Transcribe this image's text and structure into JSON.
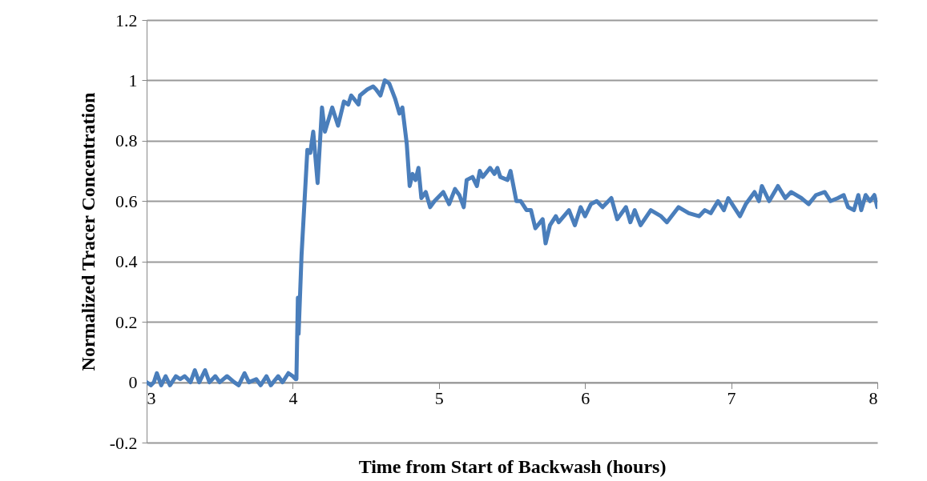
{
  "chart_data": {
    "type": "line",
    "xlabel": "Time from Start of Backwash (hours)",
    "ylabel": "Normalized Tracer Concentration",
    "xlim": [
      3,
      8
    ],
    "xticks": [
      3,
      4,
      5,
      6,
      7,
      8
    ],
    "ylim": [
      -0.2,
      1.2
    ],
    "yticks": [
      -0.2,
      0,
      0.2,
      0.4,
      0.6,
      0.8,
      1,
      1.2
    ],
    "grid": "y",
    "line_style": "solid",
    "marker": "none",
    "series": [
      {
        "color": "#4a7ebb",
        "x": [
          3.0,
          3.03,
          3.05,
          3.07,
          3.1,
          3.13,
          3.16,
          3.2,
          3.23,
          3.26,
          3.3,
          3.33,
          3.36,
          3.4,
          3.43,
          3.47,
          3.5,
          3.55,
          3.6,
          3.63,
          3.67,
          3.7,
          3.75,
          3.78,
          3.82,
          3.85,
          3.9,
          3.93,
          3.97,
          4.0,
          4.02,
          4.025,
          4.035,
          4.04,
          4.06,
          4.1,
          4.12,
          4.14,
          4.17,
          4.2,
          4.22,
          4.27,
          4.31,
          4.35,
          4.38,
          4.4,
          4.45,
          4.46,
          4.51,
          4.55,
          4.57,
          4.6,
          4.63,
          4.66,
          4.7,
          4.73,
          4.75,
          4.78,
          4.8,
          4.82,
          4.84,
          4.86,
          4.88,
          4.91,
          4.94,
          4.97,
          5.03,
          5.07,
          5.11,
          5.14,
          5.17,
          5.19,
          5.23,
          5.26,
          5.28,
          5.3,
          5.35,
          5.38,
          5.4,
          5.42,
          5.47,
          5.49,
          5.53,
          5.56,
          5.6,
          5.63,
          5.66,
          5.71,
          5.73,
          5.76,
          5.8,
          5.82,
          5.89,
          5.93,
          5.97,
          6.0,
          6.04,
          6.08,
          6.12,
          6.18,
          6.22,
          6.28,
          6.31,
          6.34,
          6.38,
          6.45,
          6.52,
          6.56,
          6.64,
          6.71,
          6.78,
          6.82,
          6.86,
          6.91,
          6.95,
          6.98,
          7.02,
          7.06,
          7.1,
          7.16,
          7.19,
          7.21,
          7.26,
          7.32,
          7.37,
          7.41,
          7.48,
          7.53,
          7.58,
          7.64,
          7.68,
          7.73,
          7.77,
          7.8,
          7.84,
          7.87,
          7.89,
          7.92,
          7.95,
          7.98,
          8.0
        ],
        "values": [
          0,
          -0.01,
          0,
          0.03,
          -0.01,
          0.02,
          -0.01,
          0.02,
          0.01,
          0.02,
          0,
          0.04,
          0,
          0.04,
          0,
          0.02,
          0,
          0.02,
          0,
          -0.01,
          0.03,
          0,
          0.01,
          -0.01,
          0.02,
          -0.01,
          0.02,
          0,
          0.03,
          0.02,
          0.01,
          0.01,
          0.28,
          0.16,
          0.42,
          0.77,
          0.76,
          0.83,
          0.66,
          0.91,
          0.83,
          0.91,
          0.85,
          0.93,
          0.92,
          0.95,
          0.92,
          0.95,
          0.97,
          0.98,
          0.97,
          0.95,
          1.0,
          0.99,
          0.94,
          0.89,
          0.91,
          0.79,
          0.65,
          0.69,
          0.67,
          0.71,
          0.61,
          0.63,
          0.58,
          0.6,
          0.63,
          0.59,
          0.64,
          0.62,
          0.58,
          0.67,
          0.68,
          0.65,
          0.7,
          0.68,
          0.71,
          0.69,
          0.71,
          0.68,
          0.67,
          0.7,
          0.6,
          0.6,
          0.57,
          0.57,
          0.51,
          0.54,
          0.46,
          0.52,
          0.55,
          0.53,
          0.57,
          0.52,
          0.58,
          0.55,
          0.59,
          0.6,
          0.58,
          0.61,
          0.54,
          0.58,
          0.53,
          0.57,
          0.52,
          0.57,
          0.55,
          0.53,
          0.58,
          0.56,
          0.55,
          0.57,
          0.56,
          0.6,
          0.57,
          0.61,
          0.58,
          0.55,
          0.59,
          0.63,
          0.6,
          0.65,
          0.6,
          0.65,
          0.61,
          0.63,
          0.61,
          0.59,
          0.62,
          0.63,
          0.6,
          0.61,
          0.62,
          0.58,
          0.57,
          0.62,
          0.57,
          0.62,
          0.6,
          0.62,
          0.58
        ]
      }
    ]
  }
}
